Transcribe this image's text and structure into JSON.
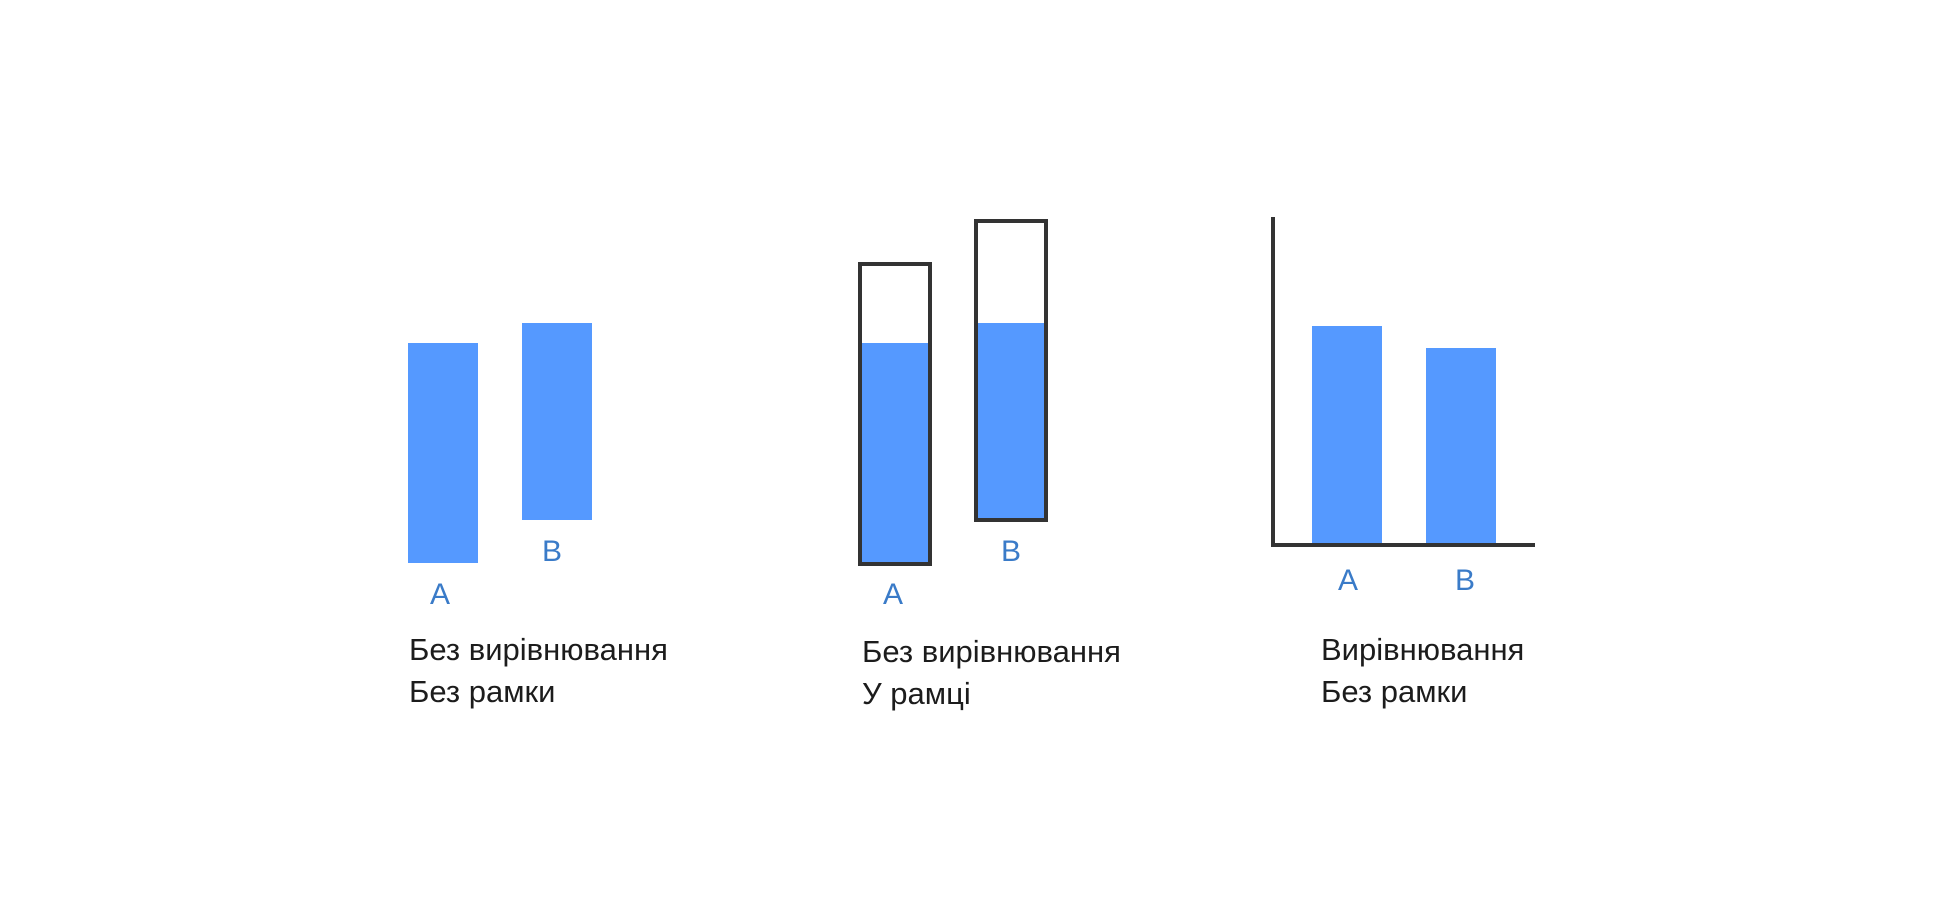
{
  "colors": {
    "bar_fill": "#5599FF",
    "label_text": "#3A7BC8",
    "frame_stroke": "#333333",
    "caption_text": "#1C1C1C",
    "background": "#FFFFFF"
  },
  "panels": [
    {
      "id": "unaligned-unframed",
      "caption_line1": "Без вирівнювання",
      "caption_line2": "Без рамки",
      "bar_a_label": "A",
      "bar_b_label": "B"
    },
    {
      "id": "unaligned-framed",
      "caption_line1": "Без вирівнювання",
      "caption_line2": "У рамці",
      "bar_a_label": "A",
      "bar_b_label": "B"
    },
    {
      "id": "aligned-unframed",
      "caption_line1": "Вирівнювання",
      "caption_line2": "Без рамки",
      "bar_a_label": "A",
      "bar_b_label": "B"
    }
  ]
}
